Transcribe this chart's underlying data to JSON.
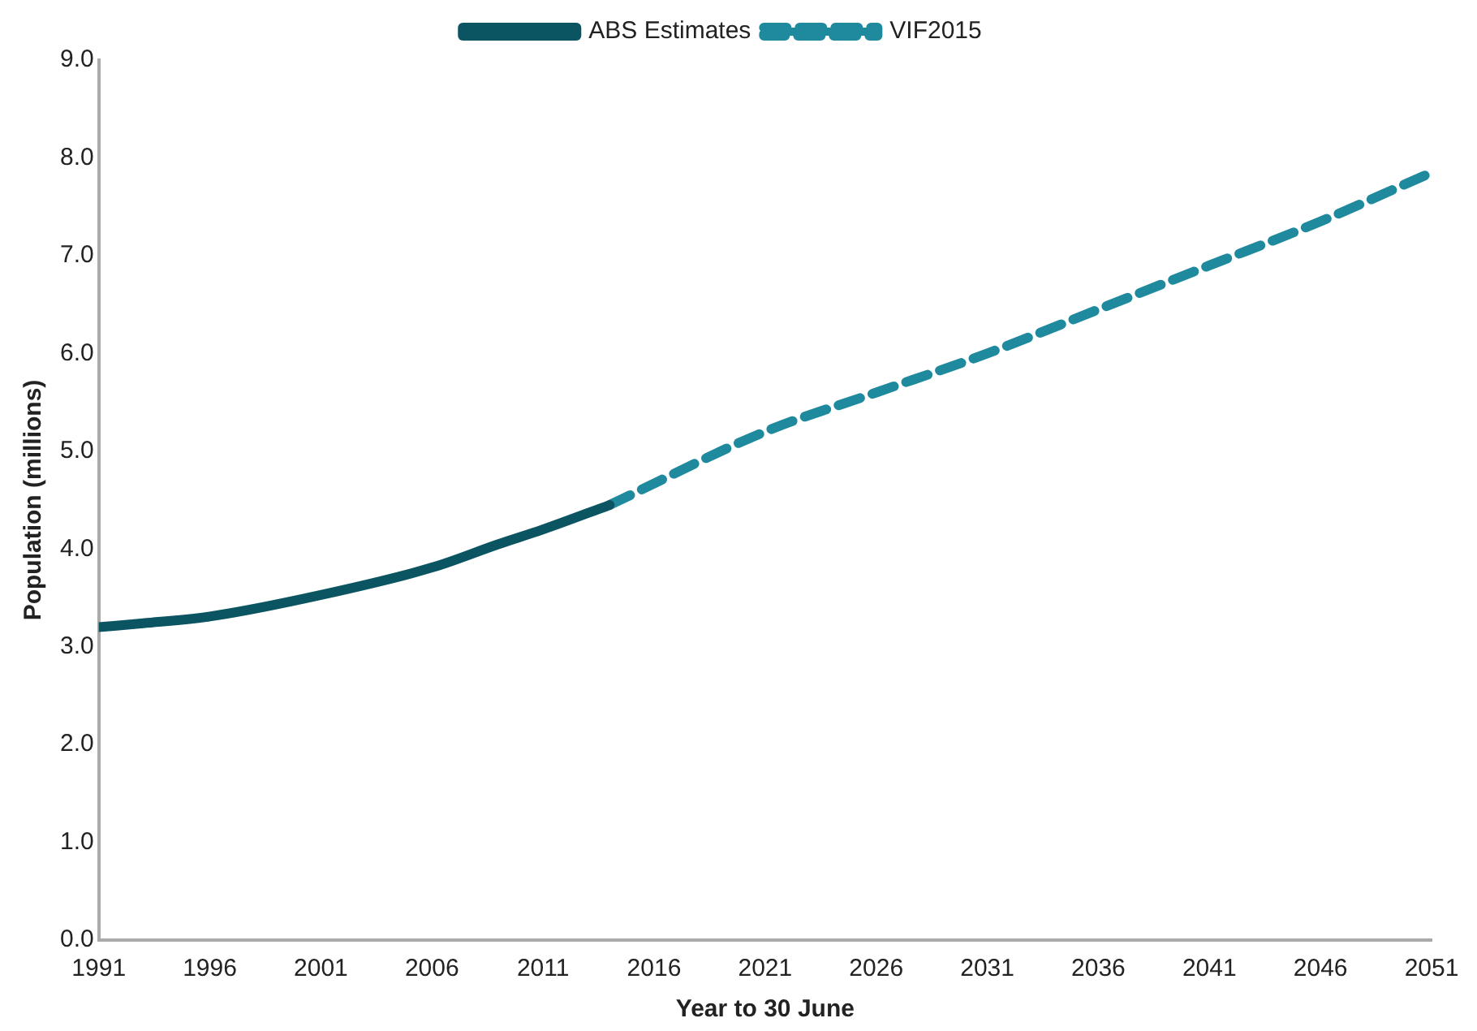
{
  "chart_data": {
    "type": "line",
    "xlabel": "Year to 30 June",
    "ylabel": "Population (millions)",
    "xlim": [
      1991,
      2051
    ],
    "xticks": [
      1991,
      1996,
      2001,
      2006,
      2011,
      2016,
      2021,
      2026,
      2031,
      2036,
      2041,
      2046,
      2051
    ],
    "ylim": [
      0,
      9
    ],
    "yticks": [
      {
        "value": 0,
        "label": "0.0"
      },
      {
        "value": 1,
        "label": "1.0"
      },
      {
        "value": 2,
        "label": "2.0"
      },
      {
        "value": 3,
        "label": "3.0"
      },
      {
        "value": 4,
        "label": "4.0"
      },
      {
        "value": 5,
        "label": "5.0"
      },
      {
        "value": 6,
        "label": "6.0"
      },
      {
        "value": 7,
        "label": "7.0"
      },
      {
        "value": 8,
        "label": "8.0"
      },
      {
        "value": 9,
        "label": "9.0"
      }
    ],
    "grid": false,
    "legend": "top",
    "marker": "none",
    "series": [
      {
        "name": "ABS Estimates",
        "color": "#0b5563",
        "line_style": "solid",
        "x": [
          1991,
          1993,
          1996,
          2001,
          2006,
          2009,
          2011,
          2014
        ],
        "values": [
          3.2,
          3.24,
          3.31,
          3.53,
          3.81,
          4.05,
          4.2,
          4.45
        ]
      },
      {
        "name": "VIF2015",
        "color": "#1f8a9e",
        "line_style": "dashed",
        "x": [
          2014,
          2021,
          2026,
          2031,
          2036,
          2041,
          2046,
          2051
        ],
        "values": [
          4.45,
          5.2,
          5.6,
          6.0,
          6.45,
          6.9,
          7.35,
          7.85
        ]
      }
    ]
  }
}
